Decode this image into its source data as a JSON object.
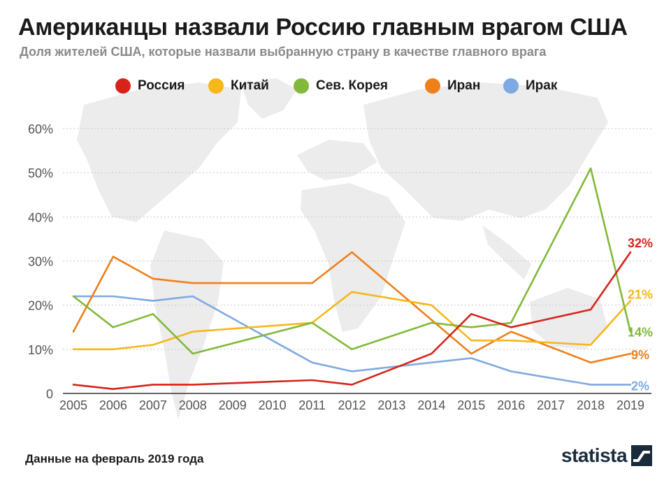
{
  "title": "Американцы назвали Россию главным врагом США",
  "subtitle": "Доля жителей США, которые назвали выбранную страну в качестве главного врага",
  "footer": "Данные на февраль 2019 года",
  "brand": "statista",
  "chart_data": {
    "type": "line",
    "x": [
      "2005",
      "2006",
      "2007",
      "2008",
      "2009",
      "2010",
      "2011",
      "2012",
      "2013",
      "2014",
      "2015",
      "2016",
      "2017",
      "2018",
      "2019"
    ],
    "ylim": [
      0,
      60
    ],
    "yticks": [
      "0",
      "10%",
      "20%",
      "30%",
      "40%",
      "50%",
      "60%"
    ],
    "ytick_values": [
      0,
      10,
      20,
      30,
      40,
      50,
      60
    ],
    "grid": "horizontal-dotted",
    "legend_position": "top",
    "series": [
      {
        "name": "Россия",
        "color": "#d6241b",
        "points": [
          [
            2005,
            2
          ],
          [
            2006,
            1
          ],
          [
            2007,
            2
          ],
          [
            2008,
            2
          ],
          [
            2011,
            3
          ],
          [
            2012,
            2
          ],
          [
            2014,
            9
          ],
          [
            2015,
            18
          ],
          [
            2016,
            15
          ],
          [
            2018,
            19
          ],
          [
            2019,
            32
          ]
        ],
        "end_label": "32%"
      },
      {
        "name": "Китай",
        "color": "#f6b719",
        "points": [
          [
            2005,
            10
          ],
          [
            2006,
            10
          ],
          [
            2007,
            11
          ],
          [
            2008,
            14
          ],
          [
            2011,
            16
          ],
          [
            2012,
            23
          ],
          [
            2014,
            20
          ],
          [
            2015,
            12
          ],
          [
            2016,
            12
          ],
          [
            2018,
            11
          ],
          [
            2019,
            21
          ]
        ],
        "end_label": "21%"
      },
      {
        "name": "Сев. Корея",
        "color": "#82b93a",
        "points": [
          [
            2005,
            22
          ],
          [
            2006,
            15
          ],
          [
            2007,
            18
          ],
          [
            2008,
            9
          ],
          [
            2011,
            16
          ],
          [
            2012,
            10
          ],
          [
            2014,
            16
          ],
          [
            2015,
            15
          ],
          [
            2016,
            16
          ],
          [
            2018,
            51
          ],
          [
            2019,
            14
          ]
        ],
        "end_label": "14%"
      },
      {
        "name": "Иран",
        "color": "#ef7f1a",
        "points": [
          [
            2005,
            14
          ],
          [
            2006,
            31
          ],
          [
            2007,
            26
          ],
          [
            2008,
            25
          ],
          [
            2011,
            25
          ],
          [
            2012,
            32
          ],
          [
            2015,
            9
          ],
          [
            2016,
            14
          ],
          [
            2018,
            7
          ],
          [
            2019,
            9
          ]
        ],
        "end_label": "9%"
      },
      {
        "name": "Ирак",
        "color": "#7ea9e1",
        "points": [
          [
            2005,
            22
          ],
          [
            2006,
            22
          ],
          [
            2007,
            21
          ],
          [
            2008,
            22
          ],
          [
            2011,
            7
          ],
          [
            2012,
            5
          ],
          [
            2015,
            8
          ],
          [
            2016,
            5
          ],
          [
            2018,
            2
          ],
          [
            2019,
            2
          ]
        ],
        "end_label": "2%"
      }
    ]
  }
}
